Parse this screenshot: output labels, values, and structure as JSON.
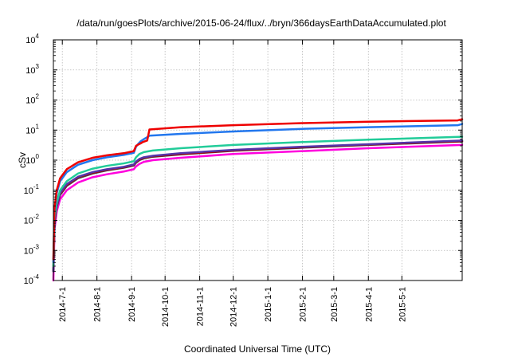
{
  "chart_data": {
    "type": "line",
    "title": "/data/run/goesPlots/archive/2015-06-24/flux/../bryn/366daysEarthDataAccumulated.plot",
    "xlabel": "Coordinated Universal Time (UTC)",
    "ylabel": "cSv",
    "x_scale": "date",
    "y_scale": "log",
    "xlim": [
      "2014-06-23",
      "2015-06-24"
    ],
    "ylim": [
      0.0001,
      10000
    ],
    "grid": true,
    "legend": "none",
    "x_ticks": [
      "2014-7-1",
      "2014-8-1",
      "2014-9-1",
      "2014-10-1",
      "2014-11-1",
      "2014-12-1",
      "2015-1-1",
      "2015-2-1",
      "2015-3-1",
      "2015-4-1",
      "2015-5-1"
    ],
    "y_ticks": [
      {
        "value": 0.0001,
        "base": "10",
        "exp": "-4"
      },
      {
        "value": 0.001,
        "base": "10",
        "exp": "-3"
      },
      {
        "value": 0.01,
        "base": "10",
        "exp": "-2"
      },
      {
        "value": 0.1,
        "base": "10",
        "exp": "-1"
      },
      {
        "value": 1,
        "base": "10",
        "exp": "0"
      },
      {
        "value": 10,
        "base": "10",
        "exp": "1"
      },
      {
        "value": 100,
        "base": "10",
        "exp": "2"
      },
      {
        "value": 1000,
        "base": "10",
        "exp": "3"
      },
      {
        "value": 10000,
        "base": "10",
        "exp": "4"
      }
    ],
    "series": [
      {
        "color": "#ff00dd",
        "x": [
          "2014-06-23",
          "2014-06-24",
          "2014-06-26",
          "2014-06-29",
          "2014-07-05",
          "2014-07-15",
          "2014-07-28",
          "2014-08-10",
          "2014-08-25",
          "2014-09-03",
          "2014-09-05",
          "2014-09-08",
          "2014-09-12",
          "2014-09-20",
          "2014-10-15",
          "2014-12-01",
          "2015-02-01",
          "2015-04-01",
          "2015-06-24"
        ],
        "y": [
          0.0001,
          0.005,
          0.02,
          0.05,
          0.1,
          0.18,
          0.27,
          0.34,
          0.42,
          0.5,
          0.62,
          0.75,
          0.88,
          1.0,
          1.2,
          1.6,
          2.0,
          2.5,
          3.2
        ]
      },
      {
        "color": "#444444",
        "x": [
          "2014-06-23",
          "2014-06-24",
          "2014-06-26",
          "2014-06-29",
          "2014-07-05",
          "2014-07-15",
          "2014-07-28",
          "2014-08-10",
          "2014-08-25",
          "2014-09-03",
          "2014-09-05",
          "2014-09-08",
          "2014-09-12",
          "2014-09-20",
          "2014-10-15",
          "2014-12-01",
          "2015-02-01",
          "2015-04-01",
          "2015-06-24"
        ],
        "y": [
          0.0002,
          0.008,
          0.028,
          0.07,
          0.14,
          0.25,
          0.36,
          0.46,
          0.56,
          0.66,
          0.82,
          1.0,
          1.15,
          1.3,
          1.55,
          2.05,
          2.6,
          3.2,
          4.2
        ]
      },
      {
        "color": "#aa0000",
        "x": [
          "2014-06-23",
          "2014-06-24",
          "2014-06-26",
          "2014-06-29",
          "2014-07-05",
          "2014-07-15",
          "2014-07-28",
          "2014-08-10",
          "2014-08-25",
          "2014-09-03",
          "2014-09-05",
          "2014-09-08",
          "2014-09-12",
          "2014-09-20",
          "2014-10-15",
          "2014-12-01",
          "2015-02-01",
          "2015-04-01",
          "2015-06-24"
        ],
        "y": [
          0.0002,
          0.009,
          0.03,
          0.075,
          0.15,
          0.27,
          0.38,
          0.48,
          0.58,
          0.7,
          0.86,
          1.05,
          1.2,
          1.35,
          1.6,
          2.1,
          2.7,
          3.3,
          4.3
        ]
      },
      {
        "color": "#5533aa",
        "x": [
          "2014-06-23",
          "2014-06-24",
          "2014-06-26",
          "2014-06-29",
          "2014-07-05",
          "2014-07-15",
          "2014-07-28",
          "2014-08-10",
          "2014-08-25",
          "2014-09-03",
          "2014-09-05",
          "2014-09-08",
          "2014-09-12",
          "2014-09-20",
          "2014-10-15",
          "2014-12-01",
          "2015-02-01",
          "2015-04-01",
          "2015-06-24"
        ],
        "y": [
          0.0002,
          0.01,
          0.032,
          0.08,
          0.16,
          0.28,
          0.4,
          0.5,
          0.6,
          0.72,
          0.9,
          1.1,
          1.25,
          1.4,
          1.7,
          2.2,
          2.8,
          3.4,
          4.5
        ]
      },
      {
        "color": "#22cc99",
        "x": [
          "2014-06-23",
          "2014-06-24",
          "2014-06-26",
          "2014-06-29",
          "2014-07-05",
          "2014-07-15",
          "2014-07-28",
          "2014-08-10",
          "2014-08-25",
          "2014-09-03",
          "2014-09-05",
          "2014-09-08",
          "2014-09-12",
          "2014-09-20",
          "2014-10-15",
          "2014-12-01",
          "2015-02-01",
          "2015-04-01",
          "2015-06-24"
        ],
        "y": [
          0.0003,
          0.012,
          0.04,
          0.1,
          0.2,
          0.36,
          0.52,
          0.65,
          0.78,
          0.92,
          1.25,
          1.6,
          1.85,
          2.1,
          2.5,
          3.2,
          4.0,
          4.8,
          6.0
        ]
      },
      {
        "color": "#2277ee",
        "x": [
          "2014-06-23",
          "2014-06-24",
          "2014-06-26",
          "2014-06-29",
          "2014-07-05",
          "2014-07-15",
          "2014-07-28",
          "2014-08-10",
          "2014-08-25",
          "2014-09-03",
          "2014-09-05",
          "2014-09-07",
          "2014-09-09",
          "2014-09-12",
          "2014-09-15",
          "2014-09-17",
          "2014-10-15",
          "2014-12-01",
          "2015-02-01",
          "2015-04-01",
          "2015-06-20",
          "2015-06-24"
        ],
        "y": [
          0.0004,
          0.02,
          0.08,
          0.2,
          0.4,
          0.7,
          1.0,
          1.25,
          1.5,
          1.75,
          2.8,
          3.5,
          4.2,
          5.0,
          5.8,
          6.5,
          7.5,
          9.0,
          11.0,
          12.5,
          14.5,
          16.0
        ]
      },
      {
        "color": "#ee0000",
        "x": [
          "2014-06-23",
          "2014-06-24",
          "2014-06-26",
          "2014-06-29",
          "2014-07-05",
          "2014-07-15",
          "2014-07-28",
          "2014-08-10",
          "2014-08-25",
          "2014-09-03",
          "2014-09-05",
          "2014-09-07",
          "2014-09-09",
          "2014-09-11",
          "2014-09-15",
          "2014-09-17",
          "2014-10-15",
          "2014-12-01",
          "2015-02-01",
          "2015-04-01",
          "2015-06-20",
          "2015-06-24"
        ],
        "y": [
          0.0005,
          0.025,
          0.1,
          0.25,
          0.5,
          0.85,
          1.2,
          1.45,
          1.7,
          2.0,
          3.0,
          3.3,
          3.6,
          4.0,
          4.5,
          10.5,
          12.5,
          14.5,
          17.0,
          19.0,
          21.0,
          23.0
        ]
      }
    ]
  }
}
